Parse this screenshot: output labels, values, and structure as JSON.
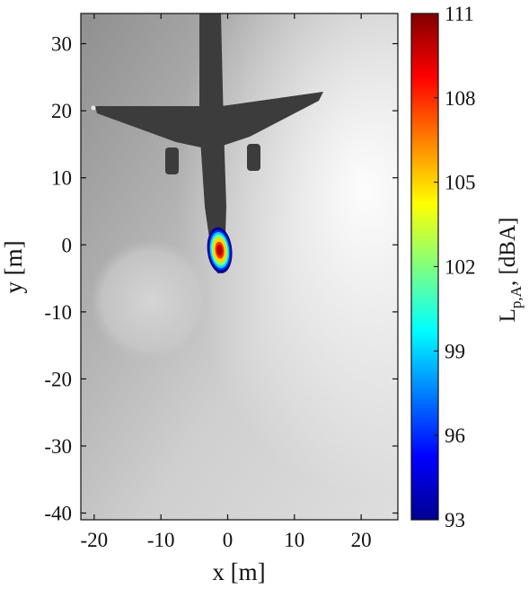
{
  "chart_data": {
    "type": "heatmap",
    "title": "",
    "xlabel": "x [m]",
    "ylabel": "y [m]",
    "xlim": [
      -22,
      25.5
    ],
    "ylim": [
      -41,
      34.5
    ],
    "x_ticks": [
      -20,
      -10,
      0,
      10,
      20
    ],
    "x_tick_labels": [
      "-20",
      "-10",
      "0",
      "10",
      "20"
    ],
    "y_ticks": [
      30,
      20,
      10,
      0,
      -10,
      -20,
      -30,
      -40
    ],
    "y_tick_labels": [
      "30",
      "20",
      "10",
      "0",
      "-10",
      "-20",
      "-30",
      "-40"
    ],
    "background": "grayscale photograph of aircraft overflight (camera image)",
    "source_map": {
      "peak_x": -1.2,
      "peak_y": -0.8,
      "peak_level": 110.5,
      "contour_levels": [
        93,
        96,
        99,
        102,
        105,
        108,
        110
      ]
    },
    "colorbar": {
      "label_main": "L",
      "label_sub": "p,A",
      "label_suffix": ", [dBA]",
      "min": 93,
      "max": 111,
      "ticks": [
        111,
        108,
        105,
        102,
        99,
        96,
        93
      ],
      "tick_labels": [
        "111",
        "108",
        "105",
        "102",
        "99",
        "96",
        "93"
      ],
      "colormap": "jet"
    },
    "grid": false
  }
}
